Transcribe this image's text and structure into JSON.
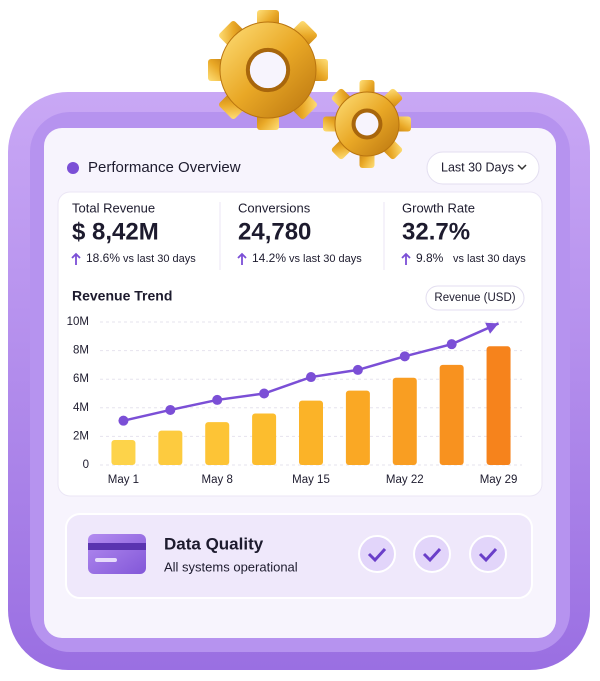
{
  "header": {
    "title": "Performance Overview",
    "range": "Last 30 Days"
  },
  "kpis": [
    {
      "label": "Total Revenue",
      "value": "$ 8,42M",
      "change": "18.6%",
      "note": "vs last 30 days"
    },
    {
      "label": "Conversions",
      "value": "24,780",
      "change": "14.2%",
      "note": "vs last 30 days"
    },
    {
      "label": "Growth Rate",
      "value": "32.7%",
      "change": "9.8%",
      "note": "vs last 30 days"
    }
  ],
  "chart_data": {
    "type": "bar",
    "title": "Revenue Trend",
    "categories": [
      "May 1",
      null,
      "May 8",
      null,
      "May 15",
      null,
      "May 22",
      null,
      "May 29"
    ],
    "series": [
      {
        "name": "Revenue (USD)",
        "type": "bar",
        "colors": [
          "#fdd34a",
          "#fdcb3f",
          "#fdc436",
          "#fcbd2e",
          "#fbb328",
          "#faa824",
          "#f99e22",
          "#f8921f",
          "#f6831c"
        ],
        "values": [
          1750000,
          2400000,
          3000000,
          3600000,
          4500000,
          5200000,
          6100000,
          7000000,
          8300000
        ]
      },
      {
        "type": "line",
        "color": "#7b4fd6",
        "values": [
          3100000,
          3850000,
          4550000,
          5000000,
          6150000,
          6650000,
          7600000,
          8450000,
          9900000
        ]
      }
    ],
    "ylim": [
      0,
      10000000
    ],
    "yticks": [
      {
        "value": 0,
        "label": "0"
      },
      {
        "value": 2000000,
        "label": "2M"
      },
      {
        "value": 4000000,
        "label": "4M"
      },
      {
        "value": 6000000,
        "label": "6M"
      },
      {
        "value": 8000000,
        "label": "8M"
      },
      {
        "value": 10000000,
        "label": "10M"
      }
    ],
    "grid": true
  },
  "status": {
    "title": "Data Quality",
    "subtitle": "All systems operational"
  }
}
